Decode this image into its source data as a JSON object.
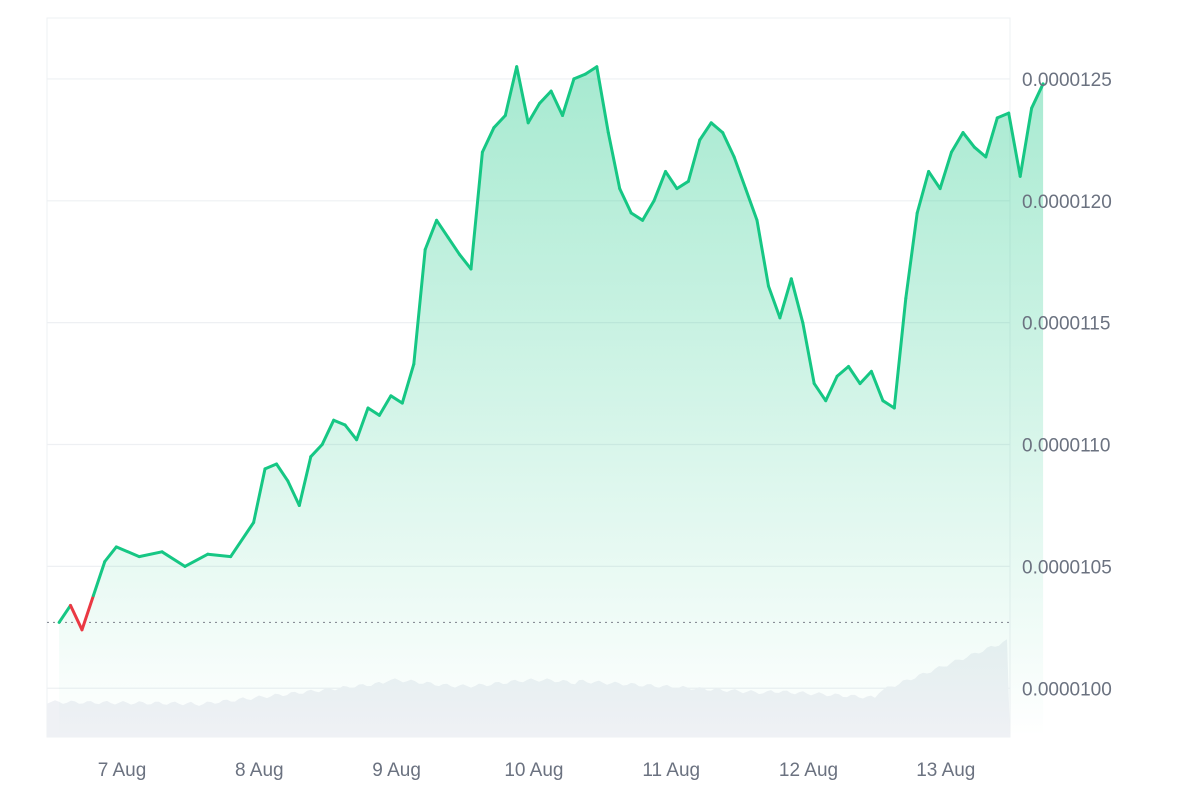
{
  "chart_data": {
    "type": "area",
    "title": "",
    "xlabel": "",
    "ylabel": "",
    "x_ticks": [
      "7 Aug",
      "8 Aug",
      "9 Aug",
      "10 Aug",
      "11 Aug",
      "12 Aug",
      "13 Aug"
    ],
    "y_ticks": [
      "0.0000100",
      "0.0000105",
      "0.0000110",
      "0.0000115",
      "0.0000120",
      "0.0000125"
    ],
    "ylim": [
      9.8e-06,
      1.275e-05
    ],
    "grid": true,
    "baseline": 1.027e-05,
    "colors": {
      "up_line": "#16c784",
      "down_line": "#ea3943",
      "area_fill": "#16c784",
      "volume_fill": "#eff1f5",
      "grid": "#eef0f3",
      "baseline": "#8a8f98"
    },
    "series": [
      {
        "x": [
          "6 Aug 13:00",
          "6 Aug 15:00",
          "6 Aug 17:00",
          "6 Aug 19:00",
          "6 Aug 21:00",
          "6 Aug 23:00",
          "7 Aug 03:00",
          "7 Aug 07:00",
          "7 Aug 11:00",
          "7 Aug 15:00",
          "7 Aug 19:00",
          "7 Aug 23:00",
          "8 Aug 01:00",
          "8 Aug 03:00",
          "8 Aug 05:00",
          "8 Aug 07:00",
          "8 Aug 09:00",
          "8 Aug 11:00",
          "8 Aug 13:00",
          "8 Aug 15:00",
          "8 Aug 17:00",
          "8 Aug 19:00",
          "8 Aug 21:00",
          "8 Aug 23:00",
          "9 Aug 01:00",
          "9 Aug 03:00",
          "9 Aug 05:00",
          "9 Aug 07:00",
          "9 Aug 09:00",
          "9 Aug 11:00",
          "9 Aug 13:00",
          "9 Aug 15:00",
          "9 Aug 17:00",
          "9 Aug 19:00",
          "9 Aug 21:00",
          "9 Aug 23:00",
          "10 Aug 01:00",
          "10 Aug 03:00",
          "10 Aug 05:00",
          "10 Aug 07:00",
          "10 Aug 09:00",
          "10 Aug 11:00",
          "10 Aug 13:00",
          "10 Aug 15:00",
          "10 Aug 17:00",
          "10 Aug 19:00",
          "10 Aug 21:00",
          "10 Aug 23:00",
          "11 Aug 01:00",
          "11 Aug 03:00",
          "11 Aug 05:00",
          "11 Aug 07:00",
          "11 Aug 09:00",
          "11 Aug 11:00",
          "11 Aug 13:00",
          "11 Aug 15:00",
          "11 Aug 17:00",
          "11 Aug 19:00",
          "11 Aug 21:00",
          "11 Aug 23:00",
          "12 Aug 01:00",
          "12 Aug 03:00",
          "12 Aug 05:00",
          "12 Aug 07:00",
          "12 Aug 09:00",
          "12 Aug 11:00",
          "12 Aug 13:00",
          "12 Aug 15:00",
          "12 Aug 17:00",
          "12 Aug 19:00",
          "12 Aug 21:00",
          "12 Aug 23:00",
          "13 Aug 01:00",
          "13 Aug 03:00",
          "13 Aug 05:00",
          "13 Aug 07:00",
          "13 Aug 09:00",
          "13 Aug 11:00",
          "13 Aug 13:00",
          "13 Aug 15:00",
          "13 Aug 17:00"
        ],
        "values": [
          1.027e-05,
          1.034e-05,
          1.024e-05,
          1.038e-05,
          1.052e-05,
          1.058e-05,
          1.054e-05,
          1.056e-05,
          1.05e-05,
          1.055e-05,
          1.054e-05,
          1.068e-05,
          1.09e-05,
          1.092e-05,
          1.085e-05,
          1.075e-05,
          1.095e-05,
          1.1e-05,
          1.11e-05,
          1.108e-05,
          1.102e-05,
          1.115e-05,
          1.112e-05,
          1.12e-05,
          1.117e-05,
          1.133e-05,
          1.18e-05,
          1.192e-05,
          1.185e-05,
          1.178e-05,
          1.172e-05,
          1.22e-05,
          1.23e-05,
          1.235e-05,
          1.255e-05,
          1.232e-05,
          1.24e-05,
          1.245e-05,
          1.235e-05,
          1.25e-05,
          1.252e-05,
          1.255e-05,
          1.228e-05,
          1.205e-05,
          1.195e-05,
          1.192e-05,
          1.2e-05,
          1.212e-05,
          1.205e-05,
          1.208e-05,
          1.225e-05,
          1.232e-05,
          1.228e-05,
          1.218e-05,
          1.205e-05,
          1.192e-05,
          1.165e-05,
          1.152e-05,
          1.168e-05,
          1.15e-05,
          1.125e-05,
          1.118e-05,
          1.128e-05,
          1.132e-05,
          1.125e-05,
          1.13e-05,
          1.118e-05,
          1.115e-05,
          1.16e-05,
          1.195e-05,
          1.212e-05,
          1.205e-05,
          1.22e-05,
          1.228e-05,
          1.222e-05,
          1.218e-05,
          1.234e-05,
          1.236e-05,
          1.21e-05,
          1.238e-05,
          1.248e-05
        ]
      }
    ]
  }
}
